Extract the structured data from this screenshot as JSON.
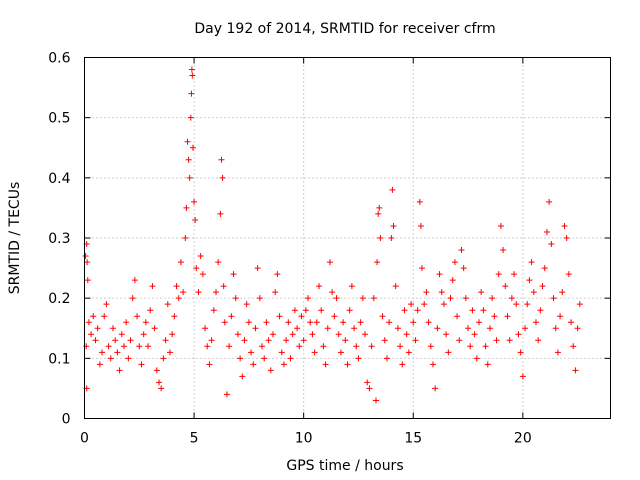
{
  "chart_data": {
    "type": "scatter",
    "title": "Day 192 of 2014, SRMTID for receiver cfrm",
    "xlabel": "GPS time / hours",
    "ylabel": "SRMTID / TECUs",
    "xlim": [
      0,
      24
    ],
    "ylim": [
      0,
      0.6
    ],
    "xticks": [
      0,
      5,
      10,
      15,
      20
    ],
    "xtick_labels": [
      "0",
      "5",
      "10",
      "15",
      "20"
    ],
    "yticks": [
      0,
      0.1,
      0.2,
      0.3,
      0.4,
      0.5,
      0.6
    ],
    "ytick_labels": [
      "0",
      "0.1",
      "0.2",
      "0.3",
      "0.4",
      "0.5",
      "0.6"
    ],
    "grid": true,
    "marker": "+",
    "color": "#ff0000",
    "series": [
      {
        "name": "SRMTID",
        "points": [
          [
            0.05,
            0.27
          ],
          [
            0.1,
            0.29
          ],
          [
            0.12,
            0.26
          ],
          [
            0.15,
            0.23
          ],
          [
            0.08,
            0.12
          ],
          [
            0.1,
            0.05
          ],
          [
            0.2,
            0.16
          ],
          [
            0.3,
            0.14
          ],
          [
            0.4,
            0.17
          ],
          [
            0.5,
            0.13
          ],
          [
            0.6,
            0.15
          ],
          [
            0.7,
            0.09
          ],
          [
            0.8,
            0.11
          ],
          [
            0.9,
            0.17
          ],
          [
            1.0,
            0.19
          ],
          [
            1.1,
            0.12
          ],
          [
            1.2,
            0.1
          ],
          [
            1.3,
            0.15
          ],
          [
            1.4,
            0.13
          ],
          [
            1.5,
            0.11
          ],
          [
            1.6,
            0.08
          ],
          [
            1.7,
            0.14
          ],
          [
            1.8,
            0.12
          ],
          [
            1.9,
            0.16
          ],
          [
            2.0,
            0.1
          ],
          [
            2.1,
            0.13
          ],
          [
            2.2,
            0.2
          ],
          [
            2.3,
            0.23
          ],
          [
            2.4,
            0.17
          ],
          [
            2.5,
            0.12
          ],
          [
            2.6,
            0.09
          ],
          [
            2.7,
            0.14
          ],
          [
            2.8,
            0.16
          ],
          [
            2.9,
            0.12
          ],
          [
            3.0,
            0.18
          ],
          [
            3.1,
            0.22
          ],
          [
            3.2,
            0.15
          ],
          [
            3.3,
            0.08
          ],
          [
            3.4,
            0.06
          ],
          [
            3.5,
            0.05
          ],
          [
            3.6,
            0.1
          ],
          [
            3.7,
            0.13
          ],
          [
            3.8,
            0.19
          ],
          [
            3.9,
            0.11
          ],
          [
            4.0,
            0.14
          ],
          [
            4.1,
            0.17
          ],
          [
            4.2,
            0.22
          ],
          [
            4.3,
            0.2
          ],
          [
            4.4,
            0.26
          ],
          [
            4.5,
            0.21
          ],
          [
            4.6,
            0.3
          ],
          [
            4.65,
            0.35
          ],
          [
            4.7,
            0.46
          ],
          [
            4.75,
            0.43
          ],
          [
            4.8,
            0.4
          ],
          [
            4.85,
            0.5
          ],
          [
            4.88,
            0.54
          ],
          [
            4.9,
            0.58
          ],
          [
            4.92,
            0.57
          ],
          [
            4.95,
            0.45
          ],
          [
            5.0,
            0.36
          ],
          [
            5.05,
            0.33
          ],
          [
            5.1,
            0.25
          ],
          [
            5.2,
            0.21
          ],
          [
            5.3,
            0.27
          ],
          [
            5.4,
            0.24
          ],
          [
            5.5,
            0.15
          ],
          [
            5.6,
            0.12
          ],
          [
            5.7,
            0.09
          ],
          [
            5.8,
            0.13
          ],
          [
            5.9,
            0.18
          ],
          [
            6.0,
            0.21
          ],
          [
            6.1,
            0.26
          ],
          [
            6.2,
            0.34
          ],
          [
            6.25,
            0.43
          ],
          [
            6.3,
            0.4
          ],
          [
            6.35,
            0.22
          ],
          [
            6.4,
            0.16
          ],
          [
            6.5,
            0.04
          ],
          [
            6.6,
            0.12
          ],
          [
            6.7,
            0.17
          ],
          [
            6.8,
            0.24
          ],
          [
            6.9,
            0.2
          ],
          [
            7.0,
            0.14
          ],
          [
            7.1,
            0.1
          ],
          [
            7.2,
            0.07
          ],
          [
            7.3,
            0.13
          ],
          [
            7.4,
            0.19
          ],
          [
            7.5,
            0.16
          ],
          [
            7.6,
            0.11
          ],
          [
            7.7,
            0.09
          ],
          [
            7.8,
            0.15
          ],
          [
            7.9,
            0.25
          ],
          [
            8.0,
            0.2
          ],
          [
            8.1,
            0.12
          ],
          [
            8.2,
            0.1
          ],
          [
            8.3,
            0.16
          ],
          [
            8.4,
            0.13
          ],
          [
            8.5,
            0.08
          ],
          [
            8.6,
            0.14
          ],
          [
            8.7,
            0.21
          ],
          [
            8.8,
            0.24
          ],
          [
            8.9,
            0.17
          ],
          [
            9.0,
            0.11
          ],
          [
            9.1,
            0.09
          ],
          [
            9.2,
            0.13
          ],
          [
            9.3,
            0.16
          ],
          [
            9.4,
            0.1
          ],
          [
            9.5,
            0.14
          ],
          [
            9.6,
            0.18
          ],
          [
            9.7,
            0.15
          ],
          [
            9.8,
            0.12
          ],
          [
            9.9,
            0.17
          ],
          [
            10.0,
            0.13
          ],
          [
            10.1,
            0.18
          ],
          [
            10.2,
            0.2
          ],
          [
            10.3,
            0.16
          ],
          [
            10.4,
            0.14
          ],
          [
            10.5,
            0.11
          ],
          [
            10.6,
            0.16
          ],
          [
            10.7,
            0.22
          ],
          [
            10.8,
            0.18
          ],
          [
            10.9,
            0.12
          ],
          [
            11.0,
            0.09
          ],
          [
            11.1,
            0.15
          ],
          [
            11.2,
            0.26
          ],
          [
            11.3,
            0.21
          ],
          [
            11.4,
            0.17
          ],
          [
            11.5,
            0.2
          ],
          [
            11.6,
            0.14
          ],
          [
            11.7,
            0.11
          ],
          [
            11.8,
            0.16
          ],
          [
            11.9,
            0.13
          ],
          [
            12.0,
            0.09
          ],
          [
            12.1,
            0.18
          ],
          [
            12.2,
            0.22
          ],
          [
            12.3,
            0.15
          ],
          [
            12.4,
            0.12
          ],
          [
            12.5,
            0.1
          ],
          [
            12.6,
            0.16
          ],
          [
            12.7,
            0.2
          ],
          [
            12.8,
            0.14
          ],
          [
            12.9,
            0.06
          ],
          [
            13.0,
            0.05
          ],
          [
            13.1,
            0.12
          ],
          [
            13.2,
            0.2
          ],
          [
            13.3,
            0.03
          ],
          [
            13.35,
            0.26
          ],
          [
            13.4,
            0.34
          ],
          [
            13.45,
            0.35
          ],
          [
            13.5,
            0.3
          ],
          [
            13.6,
            0.17
          ],
          [
            13.7,
            0.13
          ],
          [
            13.8,
            0.1
          ],
          [
            13.9,
            0.16
          ],
          [
            14.0,
            0.3
          ],
          [
            14.05,
            0.38
          ],
          [
            14.1,
            0.32
          ],
          [
            14.2,
            0.22
          ],
          [
            14.3,
            0.15
          ],
          [
            14.4,
            0.12
          ],
          [
            14.5,
            0.09
          ],
          [
            14.6,
            0.18
          ],
          [
            14.7,
            0.14
          ],
          [
            14.8,
            0.11
          ],
          [
            14.9,
            0.19
          ],
          [
            15.0,
            0.16
          ],
          [
            15.1,
            0.13
          ],
          [
            15.2,
            0.18
          ],
          [
            15.3,
            0.36
          ],
          [
            15.35,
            0.32
          ],
          [
            15.4,
            0.25
          ],
          [
            15.5,
            0.19
          ],
          [
            15.6,
            0.21
          ],
          [
            15.7,
            0.16
          ],
          [
            15.8,
            0.12
          ],
          [
            15.9,
            0.09
          ],
          [
            16.0,
            0.05
          ],
          [
            16.1,
            0.15
          ],
          [
            16.2,
            0.24
          ],
          [
            16.3,
            0.21
          ],
          [
            16.4,
            0.19
          ],
          [
            16.5,
            0.14
          ],
          [
            16.6,
            0.11
          ],
          [
            16.7,
            0.2
          ],
          [
            16.8,
            0.23
          ],
          [
            16.9,
            0.26
          ],
          [
            17.0,
            0.17
          ],
          [
            17.1,
            0.13
          ],
          [
            17.2,
            0.28
          ],
          [
            17.3,
            0.25
          ],
          [
            17.4,
            0.2
          ],
          [
            17.5,
            0.15
          ],
          [
            17.6,
            0.12
          ],
          [
            17.7,
            0.18
          ],
          [
            17.8,
            0.14
          ],
          [
            17.9,
            0.1
          ],
          [
            18.0,
            0.16
          ],
          [
            18.1,
            0.21
          ],
          [
            18.2,
            0.18
          ],
          [
            18.3,
            0.12
          ],
          [
            18.4,
            0.09
          ],
          [
            18.5,
            0.15
          ],
          [
            18.6,
            0.2
          ],
          [
            18.7,
            0.17
          ],
          [
            18.8,
            0.13
          ],
          [
            18.9,
            0.24
          ],
          [
            19.0,
            0.32
          ],
          [
            19.1,
            0.28
          ],
          [
            19.2,
            0.22
          ],
          [
            19.3,
            0.17
          ],
          [
            19.4,
            0.13
          ],
          [
            19.5,
            0.2
          ],
          [
            19.6,
            0.24
          ],
          [
            19.7,
            0.19
          ],
          [
            19.8,
            0.14
          ],
          [
            19.9,
            0.11
          ],
          [
            20.0,
            0.07
          ],
          [
            20.1,
            0.15
          ],
          [
            20.2,
            0.19
          ],
          [
            20.3,
            0.23
          ],
          [
            20.4,
            0.26
          ],
          [
            20.5,
            0.21
          ],
          [
            20.6,
            0.16
          ],
          [
            20.7,
            0.13
          ],
          [
            20.8,
            0.18
          ],
          [
            20.9,
            0.22
          ],
          [
            21.0,
            0.25
          ],
          [
            21.1,
            0.31
          ],
          [
            21.2,
            0.36
          ],
          [
            21.3,
            0.29
          ],
          [
            21.4,
            0.2
          ],
          [
            21.5,
            0.15
          ],
          [
            21.6,
            0.11
          ],
          [
            21.7,
            0.17
          ],
          [
            21.8,
            0.21
          ],
          [
            21.9,
            0.32
          ],
          [
            22.0,
            0.3
          ],
          [
            22.1,
            0.24
          ],
          [
            22.2,
            0.16
          ],
          [
            22.3,
            0.12
          ],
          [
            22.4,
            0.08
          ],
          [
            22.5,
            0.15
          ],
          [
            22.6,
            0.19
          ]
        ]
      }
    ]
  }
}
